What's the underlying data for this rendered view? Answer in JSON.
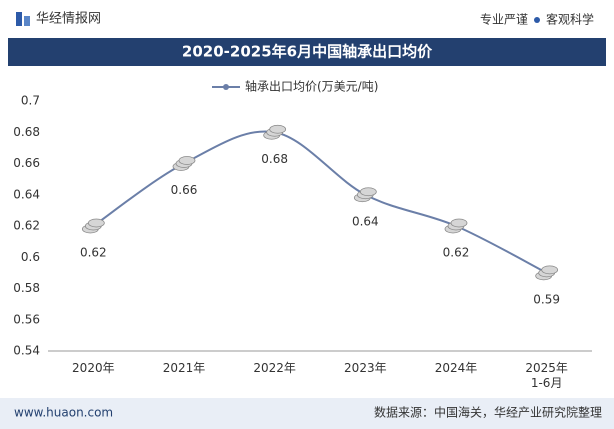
{
  "header": {
    "brand": "华经情报网",
    "slogan_left": "专业严谨",
    "slogan_right": "客观科学"
  },
  "chart_data": {
    "type": "line",
    "title": "2020-2025年6月中国轴承出口均价",
    "categories": [
      "2020年",
      "2021年",
      "2022年",
      "2023年",
      "2024年",
      "2025年\n1-6月"
    ],
    "series": [
      {
        "name": "轴承出口均价(万美元/吨)",
        "color": "#6b7fa8",
        "values": [
          0.62,
          0.66,
          0.68,
          0.64,
          0.62,
          0.59
        ]
      }
    ],
    "ylim": [
      0.54,
      0.7
    ],
    "yticks": [
      0.54,
      0.56,
      0.58,
      0.6,
      0.62,
      0.64,
      0.66,
      0.68,
      0.7
    ],
    "legend": "top"
  },
  "footer": {
    "website": "www.huaon.com",
    "source": "数据来源：中国海关，华经产业研究院整理"
  }
}
